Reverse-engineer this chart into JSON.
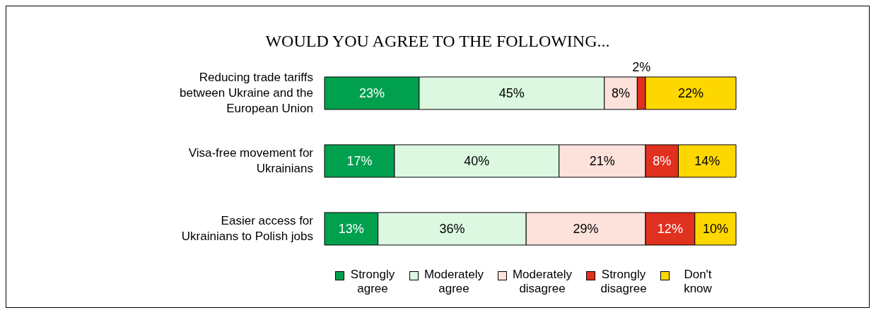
{
  "chart_data": {
    "type": "bar",
    "title": "WOULD YOU AGREE TO THE FOLLOWING...",
    "orientation": "horizontal",
    "stacked": true,
    "legend": "bottom",
    "categories": [
      "Reducing trade tariffs between Ukraine and the European Union",
      "Visa-free movement for Ukrainians",
      "Easier access for Ukrainians to Polish jobs"
    ],
    "series": [
      {
        "name": "Strongly agree",
        "color": "#00a04e",
        "values": [
          23,
          17,
          13
        ],
        "value_labels": [
          "23%",
          "17%",
          "13%"
        ]
      },
      {
        "name": "Moderately agree",
        "color": "#dcf8e0",
        "values": [
          45,
          40,
          36
        ],
        "value_labels": [
          "45%",
          "40%",
          "36%"
        ]
      },
      {
        "name": "Moderately disagree",
        "color": "#fde2dc",
        "values": [
          8,
          21,
          29
        ],
        "value_labels": [
          "8%",
          "21%",
          "29%"
        ]
      },
      {
        "name": "Strongly disagree",
        "color": "#e0301e",
        "values": [
          2,
          8,
          12
        ],
        "value_labels": [
          "2%",
          "8%",
          "12%"
        ]
      },
      {
        "name": "Don't know",
        "color": "#ffd700",
        "values": [
          22,
          14,
          10
        ],
        "value_labels": [
          "22%",
          "14%",
          "10%"
        ]
      }
    ]
  }
}
